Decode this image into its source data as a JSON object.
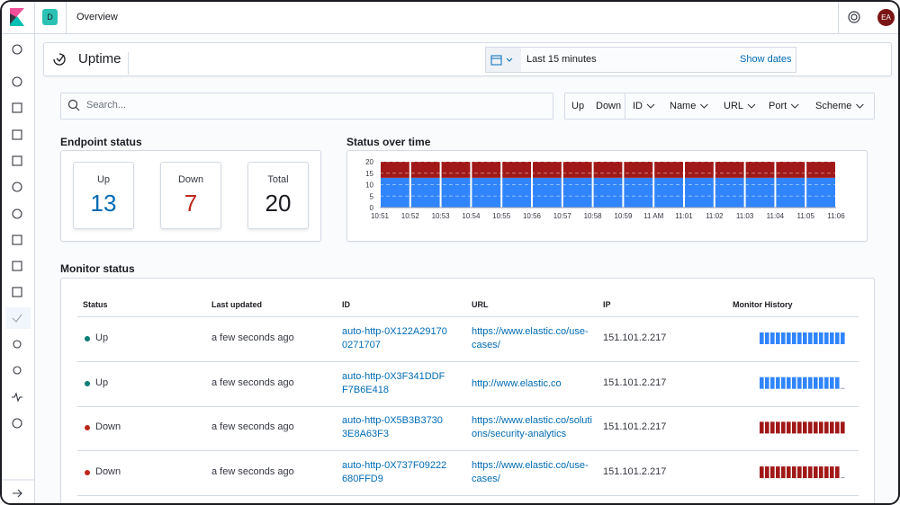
{
  "header": {
    "space": "D",
    "breadcrumb": "Overview",
    "avatar": "EA"
  },
  "app": {
    "title": "Uptime"
  },
  "date_picker": {
    "range": "Last 15 minutes",
    "show_dates": "Show dates"
  },
  "search": {
    "placeholder": "Search..."
  },
  "filters": {
    "toggles": [
      "Up",
      "Down"
    ],
    "dropdowns": [
      "ID",
      "Name",
      "URL",
      "Port",
      "Scheme"
    ]
  },
  "endpoint_status": {
    "title": "Endpoint status",
    "cards": [
      {
        "label": "Up",
        "value": 13,
        "color": "#006bb4"
      },
      {
        "label": "Down",
        "value": 7,
        "color": "#bd271e"
      },
      {
        "label": "Total",
        "value": 20,
        "color": "#1a1c21"
      }
    ]
  },
  "status_over_time": {
    "title": "Status over time",
    "type": "bar",
    "x_labels": [
      "10:51",
      "10:52",
      "10:53",
      "10:54",
      "10:55",
      "10:56",
      "10:57",
      "10:58",
      "10:59",
      "11 AM",
      "11:01",
      "11:02",
      "11:03",
      "11:04",
      "11:05",
      "11:06"
    ],
    "series": [
      {
        "color": "#3185fc",
        "values": [
          13,
          13,
          13,
          13,
          13,
          13,
          13,
          13,
          13,
          13,
          13,
          13,
          13,
          13,
          13
        ]
      },
      {
        "color": "#a11818",
        "values": [
          7,
          7,
          7,
          7,
          7,
          7,
          7,
          7,
          7,
          7,
          7,
          7,
          7,
          7,
          7
        ]
      }
    ],
    "ylim": [
      0,
      20
    ],
    "yticks": [
      0,
      5,
      10,
      15,
      20
    ]
  },
  "monitor_status": {
    "title": "Monitor status",
    "columns": [
      "Status",
      "Last updated",
      "ID",
      "URL",
      "IP",
      "Monitor History"
    ],
    "rows": [
      {
        "status": "Up",
        "updated": "a few seconds ago",
        "id": "auto-http-0X122A291700271707",
        "url": "https://www.elastic.co/use-cases/",
        "ip": "151.101.2.217",
        "color": "#017d73",
        "bar_color": "#3185fc",
        "history": [
          1,
          1,
          1,
          1,
          1,
          1,
          1,
          1,
          1,
          1,
          1,
          1,
          1,
          1,
          1,
          1
        ]
      },
      {
        "status": "Up",
        "updated": "a few seconds ago",
        "id": "auto-http-0X3F341DDFF7B6E418",
        "url": "http://www.elastic.co",
        "ip": "151.101.2.217",
        "color": "#017d73",
        "bar_color": "#3185fc",
        "history": [
          1,
          1,
          1,
          1,
          1,
          1,
          1,
          1,
          1,
          1,
          1,
          1,
          1,
          1,
          1,
          0
        ]
      },
      {
        "status": "Down",
        "updated": "a few seconds ago",
        "id": "auto-http-0X5B3B37303E8A63F3",
        "url": "https://www.elastic.co/solutions/security-analytics",
        "ip": "151.101.2.217",
        "color": "#bd271e",
        "bar_color": "#a11818",
        "history": [
          1,
          1,
          1,
          1,
          1,
          1,
          1,
          1,
          1,
          1,
          1,
          1,
          1,
          1,
          1,
          1
        ]
      },
      {
        "status": "Down",
        "updated": "a few seconds ago",
        "id": "auto-http-0X737F09222680FFD9",
        "url": "https://www.elastic.co/use-cases/",
        "ip": "151.101.2.217",
        "color": "#bd271e",
        "bar_color": "#a11818",
        "history": [
          1,
          1,
          1,
          1,
          1,
          1,
          1,
          1,
          1,
          1,
          1,
          1,
          1,
          1,
          1,
          0
        ]
      }
    ]
  }
}
